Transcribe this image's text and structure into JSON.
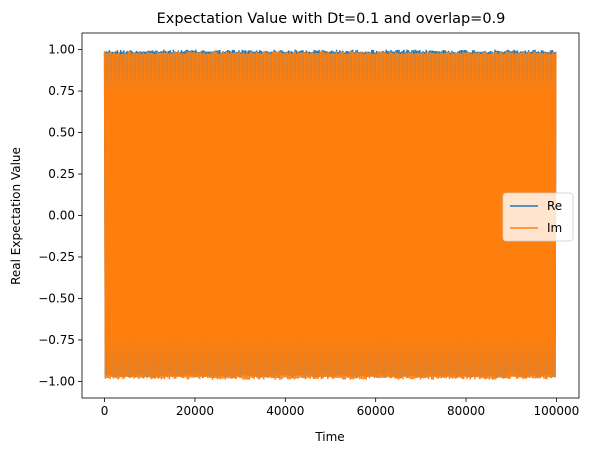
{
  "chart_data": {
    "type": "line",
    "title": "Expectation Value with Dt=0.1 and overlap=0.9",
    "xlabel": "Time",
    "ylabel": "Real Expectation Value",
    "xlim": [
      -5000,
      105000
    ],
    "ylim": [
      -1.1,
      1.1
    ],
    "x_ticks": [
      0,
      20000,
      40000,
      60000,
      80000,
      100000
    ],
    "x_tick_labels": [
      "0",
      "20000",
      "40000",
      "60000",
      "80000",
      "100000"
    ],
    "y_ticks": [
      1.0,
      0.75,
      0.5,
      0.25,
      0.0,
      -0.25,
      -0.5,
      -0.75,
      -1.0
    ],
    "y_tick_labels": [
      "1.00",
      "0.75",
      "0.50",
      "0.25",
      "0.00",
      "−0.25",
      "−0.50",
      "−0.75",
      "−1.00"
    ],
    "grid": false,
    "legend_position": "center-right",
    "series": [
      {
        "name": "Re",
        "color": "#1f77b4",
        "x_range": [
          0,
          100000
        ],
        "y_envelope": [
          -0.98,
          1.0
        ],
        "description_values": "dense oscillation between about -0.98 and 1.00 over time 0 to 100000"
      },
      {
        "name": "Im",
        "color": "#ff7f0e",
        "x_range": [
          0,
          100000
        ],
        "y_envelope": [
          -0.99,
          0.99
        ],
        "description_values": "dense oscillation between about -0.99 and 0.99 over time 0 to 100000"
      }
    ]
  }
}
